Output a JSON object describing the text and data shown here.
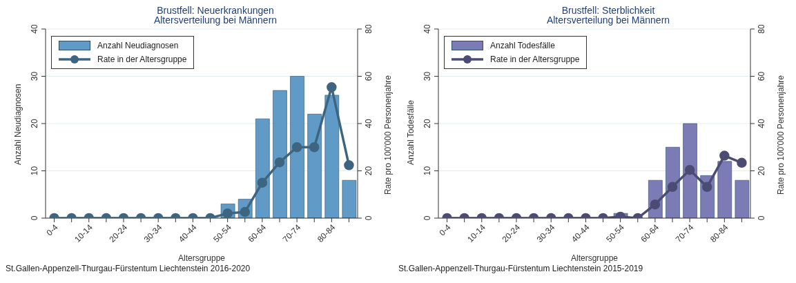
{
  "chart_data": [
    {
      "type": "bar",
      "title": "Brustfell: Neuerkrankungen",
      "subtitle": "Altersverteilung bei Männern",
      "xlabel": "Altersgruppe",
      "ylabel": "Anzahl Neudiagnosen",
      "y2label": "Rate pro 100'000 Personenjahre",
      "annotations": [
        "St.Gallen-Appenzell-Thurgau-Fürstentum Liechtenstein 2016-2020"
      ],
      "categories": [
        "0-4",
        null,
        "10-14",
        null,
        "20-24",
        null,
        "30-34",
        null,
        "40-44",
        null,
        "50-54",
        null,
        "60-64",
        null,
        "70-74",
        null,
        "80-84",
        null
      ],
      "series": [
        {
          "name": "Anzahl Neudiagnosen",
          "color": "#5f9bc6",
          "values": [
            0,
            0,
            0,
            0,
            0,
            0,
            0,
            0,
            0,
            0,
            3,
            4,
            21,
            27,
            30,
            22,
            26,
            8
          ]
        },
        {
          "name": "Rate in der Altersgruppe",
          "type": "line",
          "axis": "y2",
          "color": "#3e6580",
          "values": [
            0,
            0,
            0,
            0,
            0,
            0,
            0,
            0,
            0,
            0,
            2,
            2.6,
            15,
            23.6,
            30,
            30,
            55.4,
            22.4
          ]
        }
      ],
      "ylim": [
        0,
        40
      ],
      "yticks": [
        0,
        10,
        20,
        30,
        40
      ],
      "y2lim": [
        0,
        80
      ],
      "y2ticks": [
        0,
        20,
        40,
        60,
        80
      ],
      "grid": "y",
      "legend": "top left",
      "marker": "circle"
    },
    {
      "type": "bar",
      "title": "Brustfell: Sterblichkeit",
      "subtitle": "Altersverteilung bei Männern",
      "xlabel": "Altersgruppe",
      "ylabel": "Anzahl Todesfälle",
      "y2label": "Rate pro 100'000 Personenjahre",
      "annotations": [
        "St.Gallen-Appenzell-Thurgau-Fürstentum Liechtenstein 2015-2019"
      ],
      "categories": [
        "0-4",
        null,
        "10-14",
        null,
        "20-24",
        null,
        "30-34",
        null,
        "40-44",
        null,
        "50-54",
        null,
        "60-64",
        null,
        "70-74",
        null,
        "80-84",
        null
      ],
      "series": [
        {
          "name": "Anzahl Todesfälle",
          "color": "#7b7bb5",
          "values": [
            0,
            0,
            0,
            0,
            0,
            0,
            0,
            0,
            0,
            0,
            1,
            0,
            8,
            15,
            20,
            9,
            12,
            8
          ]
        },
        {
          "name": "Rate in der Altersgruppe",
          "type": "line",
          "axis": "y2",
          "color": "#4b4b73",
          "values": [
            0,
            0,
            0,
            0,
            0,
            0,
            0,
            0,
            0,
            0,
            0.6,
            0,
            5.8,
            13.2,
            20.4,
            13.2,
            26.4,
            23.4
          ]
        }
      ],
      "ylim": [
        0,
        40
      ],
      "yticks": [
        0,
        10,
        20,
        30,
        40
      ],
      "y2lim": [
        0,
        80
      ],
      "y2ticks": [
        0,
        20,
        40,
        60,
        80
      ],
      "grid": "y",
      "legend": "top left",
      "marker": "circle"
    }
  ]
}
